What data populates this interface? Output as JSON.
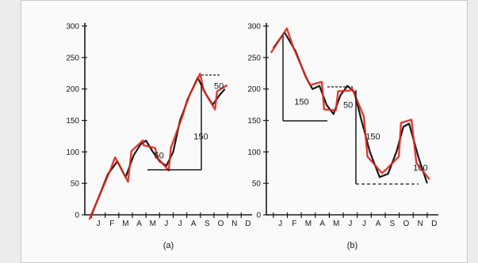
{
  "chart_data": [
    {
      "type": "line",
      "caption": "(a)",
      "categories": [
        "J",
        "F",
        "M",
        "A",
        "M",
        "J",
        "J",
        "A",
        "S",
        "O",
        "N",
        "D"
      ],
      "y_ticks": [
        0,
        50,
        100,
        150,
        200,
        250,
        300
      ],
      "ylim": [
        0,
        300
      ],
      "grid": false,
      "series": [
        {
          "values_note": "",
          "points": [
            {
              "x": 0,
              "y": 0
            },
            {
              "x": 1.2,
              "y": 65
            },
            {
              "x": 1.9,
              "y": 85
            },
            {
              "x": 2.5,
              "y": 60
            },
            {
              "x": 3.1,
              "y": 95
            },
            {
              "x": 3.6,
              "y": 112
            },
            {
              "x": 4.0,
              "y": 118
            },
            {
              "x": 4.5,
              "y": 100
            },
            {
              "x": 5.0,
              "y": 85
            },
            {
              "x": 5.5,
              "y": 78
            },
            {
              "x": 6.0,
              "y": 100
            },
            {
              "x": 6.5,
              "y": 150
            },
            {
              "x": 7.2,
              "y": 190
            },
            {
              "x": 7.8,
              "y": 218
            },
            {
              "x": 8.4,
              "y": 192
            },
            {
              "x": 8.9,
              "y": 175
            },
            {
              "x": 9.4,
              "y": 190
            },
            {
              "x": 9.8,
              "y": 200
            }
          ]
        }
      ],
      "annotations": [
        {
          "text": "50",
          "x": 9.0,
          "y": 200
        },
        {
          "text": "150",
          "x": 7.5,
          "y": 120
        },
        {
          "text": "50",
          "x": 4.6,
          "y": 90
        }
      ],
      "overlay_pen_color": "#e0261b"
    },
    {
      "type": "line",
      "caption": "(b)",
      "categories": [
        "J",
        "F",
        "M",
        "A",
        "M",
        "J",
        "J",
        "A",
        "S",
        "O",
        "N",
        "D"
      ],
      "y_ticks": [
        0,
        50,
        100,
        150,
        200,
        250,
        300
      ],
      "ylim": [
        0,
        300
      ],
      "grid": false,
      "series": [
        {
          "points": [
            {
              "x": 0,
              "y": 265
            },
            {
              "x": 0.8,
              "y": 290
            },
            {
              "x": 1.6,
              "y": 260
            },
            {
              "x": 2.3,
              "y": 220
            },
            {
              "x": 2.8,
              "y": 200
            },
            {
              "x": 3.3,
              "y": 205
            },
            {
              "x": 3.8,
              "y": 175
            },
            {
              "x": 4.3,
              "y": 160
            },
            {
              "x": 4.8,
              "y": 190
            },
            {
              "x": 5.3,
              "y": 205
            },
            {
              "x": 5.8,
              "y": 195
            },
            {
              "x": 6.3,
              "y": 150
            },
            {
              "x": 6.9,
              "y": 100
            },
            {
              "x": 7.6,
              "y": 60
            },
            {
              "x": 8.2,
              "y": 65
            },
            {
              "x": 8.8,
              "y": 100
            },
            {
              "x": 9.3,
              "y": 140
            },
            {
              "x": 9.7,
              "y": 145
            },
            {
              "x": 10.4,
              "y": 90
            },
            {
              "x": 11.0,
              "y": 50
            }
          ]
        }
      ],
      "annotations": [
        {
          "text": "150",
          "x": 1.5,
          "y": 175
        },
        {
          "text": "50",
          "x": 5.0,
          "y": 170
        },
        {
          "text": "150",
          "x": 6.6,
          "y": 120
        },
        {
          "text": "100",
          "x": 10.0,
          "y": 70
        }
      ],
      "overlay_pen_color": "#e0261b"
    }
  ]
}
